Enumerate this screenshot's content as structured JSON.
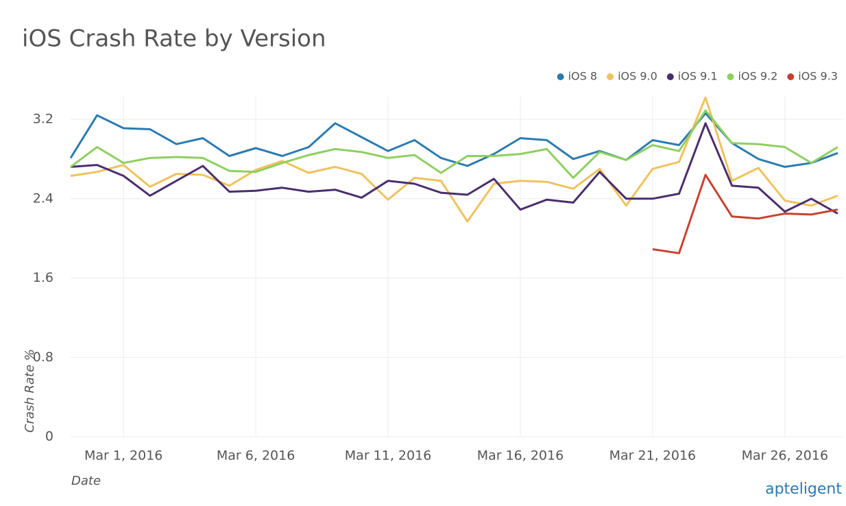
{
  "chart_data": {
    "type": "line",
    "title": "iOS Crash Rate by Version",
    "ylabel": "Crash Rate %",
    "xlabel": "Date",
    "brand": "apteligent",
    "x": [
      "2016-02-28",
      "2016-02-29",
      "2016-03-01",
      "2016-03-02",
      "2016-03-03",
      "2016-03-04",
      "2016-03-05",
      "2016-03-06",
      "2016-03-07",
      "2016-03-08",
      "2016-03-09",
      "2016-03-10",
      "2016-03-11",
      "2016-03-12",
      "2016-03-13",
      "2016-03-14",
      "2016-03-15",
      "2016-03-16",
      "2016-03-17",
      "2016-03-18",
      "2016-03-19",
      "2016-03-20",
      "2016-03-21",
      "2016-03-22",
      "2016-03-23",
      "2016-03-24",
      "2016-03-25",
      "2016-03-26",
      "2016-03-27",
      "2016-03-28"
    ],
    "xlim": [
      "2016-02-28",
      "2016-03-28"
    ],
    "xticks": [
      {
        "value": "2016-03-01",
        "label": "Mar 1, 2016"
      },
      {
        "value": "2016-03-06",
        "label": "Mar 6, 2016"
      },
      {
        "value": "2016-03-11",
        "label": "Mar 11, 2016"
      },
      {
        "value": "2016-03-16",
        "label": "Mar 16, 2016"
      },
      {
        "value": "2016-03-21",
        "label": "Mar 21, 2016"
      },
      {
        "value": "2016-03-26",
        "label": "Mar 26, 2016"
      }
    ],
    "ylim": [
      0,
      3.5
    ],
    "yticks": [
      0,
      0.8,
      1.6,
      2.4,
      3.2
    ],
    "grid": true,
    "legend": "top-right",
    "series": [
      {
        "name": "iOS 8",
        "color": "#2b7bb0",
        "values": [
          2.81,
          3.24,
          3.11,
          3.1,
          2.95,
          3.01,
          2.83,
          2.91,
          2.83,
          2.92,
          3.16,
          3.02,
          2.88,
          2.99,
          2.81,
          2.73,
          2.85,
          3.01,
          2.99,
          2.8,
          2.88,
          2.79,
          2.99,
          2.94,
          3.26,
          2.96,
          2.8,
          2.72,
          2.76,
          2.86
        ]
      },
      {
        "name": "iOS 9.0",
        "color": "#f0c25c",
        "values": [
          2.63,
          2.67,
          2.74,
          2.52,
          2.65,
          2.64,
          2.53,
          2.69,
          2.78,
          2.66,
          2.72,
          2.65,
          2.39,
          2.61,
          2.58,
          2.17,
          2.55,
          2.58,
          2.57,
          2.5,
          2.7,
          2.33,
          2.7,
          2.77,
          3.42,
          2.58,
          2.71,
          2.38,
          2.33,
          2.43
        ]
      },
      {
        "name": "iOS 9.1",
        "color": "#4a2d6e",
        "values": [
          2.72,
          2.74,
          2.63,
          2.43,
          2.58,
          2.73,
          2.47,
          2.48,
          2.51,
          2.47,
          2.49,
          2.41,
          2.58,
          2.55,
          2.46,
          2.44,
          2.6,
          2.29,
          2.39,
          2.36,
          2.67,
          2.4,
          2.4,
          2.45,
          3.16,
          2.53,
          2.51,
          2.27,
          2.4,
          2.25
        ]
      },
      {
        "name": "iOS 9.2",
        "color": "#8ecf5f",
        "values": [
          2.72,
          2.92,
          2.76,
          2.81,
          2.82,
          2.81,
          2.68,
          2.67,
          2.76,
          2.84,
          2.9,
          2.87,
          2.81,
          2.84,
          2.66,
          2.83,
          2.83,
          2.85,
          2.9,
          2.61,
          2.87,
          2.79,
          2.94,
          2.88,
          3.29,
          2.96,
          2.95,
          2.92,
          2.76,
          2.92
        ]
      },
      {
        "name": "iOS 9.3",
        "color": "#c8412f",
        "values": [
          null,
          null,
          null,
          null,
          null,
          null,
          null,
          null,
          null,
          null,
          null,
          null,
          null,
          null,
          null,
          null,
          null,
          null,
          null,
          null,
          null,
          null,
          1.89,
          1.85,
          2.64,
          2.22,
          2.2,
          2.25,
          2.24,
          2.29
        ]
      }
    ]
  }
}
